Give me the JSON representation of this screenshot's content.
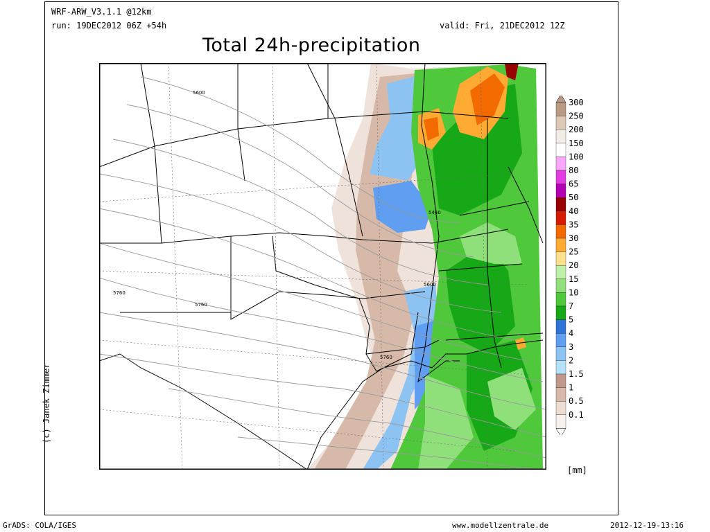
{
  "header": {
    "model": "WRF-ARW_V3.1.1 @12km",
    "run": "run: 19DEC2012 06Z +54h",
    "valid": "valid: Fri, 21DEC2012 12Z",
    "title": "Total 24h-precipitation"
  },
  "credit": "(c) Janek Zimmer",
  "unit_label": "[mm]",
  "footer": {
    "left": "GrADS: COLA/IGES",
    "center": "www.modellzentrale.de",
    "right": "2012-12-19-13:16"
  },
  "contour_labels": [
    {
      "text": "5600"
    },
    {
      "text": "5440"
    },
    {
      "text": "5600"
    },
    {
      "text": "5760"
    },
    {
      "text": "5760"
    },
    {
      "text": "5760"
    }
  ],
  "colorbar": {
    "levels": [
      "300",
      "250",
      "200",
      "150",
      "100",
      "80",
      "65",
      "50",
      "40",
      "35",
      "30",
      "25",
      "20",
      "15",
      "10",
      "7",
      "5",
      "4",
      "3",
      "2",
      "1.5",
      "1",
      "0.5",
      "0.1"
    ],
    "colors": [
      "#b89a85",
      "#dcc8b5",
      "#f2ece6",
      "#ffffff",
      "#f9a8f9",
      "#e23ce2",
      "#b400b4",
      "#990000",
      "#d61c00",
      "#f26a00",
      "#ffaa33",
      "#ffe08c",
      "#bff0a8",
      "#8fe07a",
      "#4fc83c",
      "#17a817",
      "#2f72d8",
      "#5f9ef0",
      "#8cc3f3",
      "#b4e1f8",
      "#c0988a",
      "#d8b8a8",
      "#ecdcd2",
      "#f8f0ec"
    ],
    "accent_top": "#b89a85"
  }
}
